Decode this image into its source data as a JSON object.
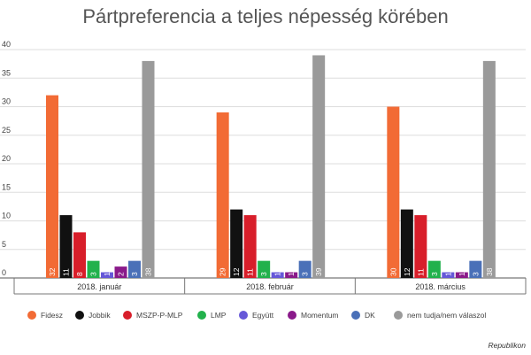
{
  "chart_data": {
    "type": "bar",
    "title": "Pártpreferencia a teljes népesség körében",
    "categories": [
      "2018. január",
      "2018. február",
      "2018. március"
    ],
    "ylim": [
      0,
      40
    ],
    "yticks": [
      0,
      5,
      10,
      15,
      20,
      25,
      30,
      35,
      40
    ],
    "grid": true,
    "legend_position": "bottom",
    "series": [
      {
        "name": "Fidesz",
        "color": "#f26b35",
        "values": [
          32,
          29,
          30
        ]
      },
      {
        "name": "Jobbik",
        "color": "#111111",
        "values": [
          11,
          12,
          12
        ]
      },
      {
        "name": "MSZP-P-MLP",
        "color": "#d81e2a",
        "values": [
          8,
          11,
          11
        ]
      },
      {
        "name": "LMP",
        "color": "#22b14c",
        "values": [
          3,
          3,
          3
        ]
      },
      {
        "name": "Együtt",
        "color": "#6658d8",
        "values": [
          1,
          1,
          1
        ]
      },
      {
        "name": "Momentum",
        "color": "#8a1a8a",
        "values": [
          2,
          1,
          1
        ]
      },
      {
        "name": "DK",
        "color": "#4a70b8",
        "values": [
          3,
          3,
          3
        ]
      },
      {
        "name": "nem tudja/nem válaszol",
        "color": "#9a9a9a",
        "values": [
          38,
          39,
          38
        ]
      }
    ]
  },
  "source": "Republikon"
}
